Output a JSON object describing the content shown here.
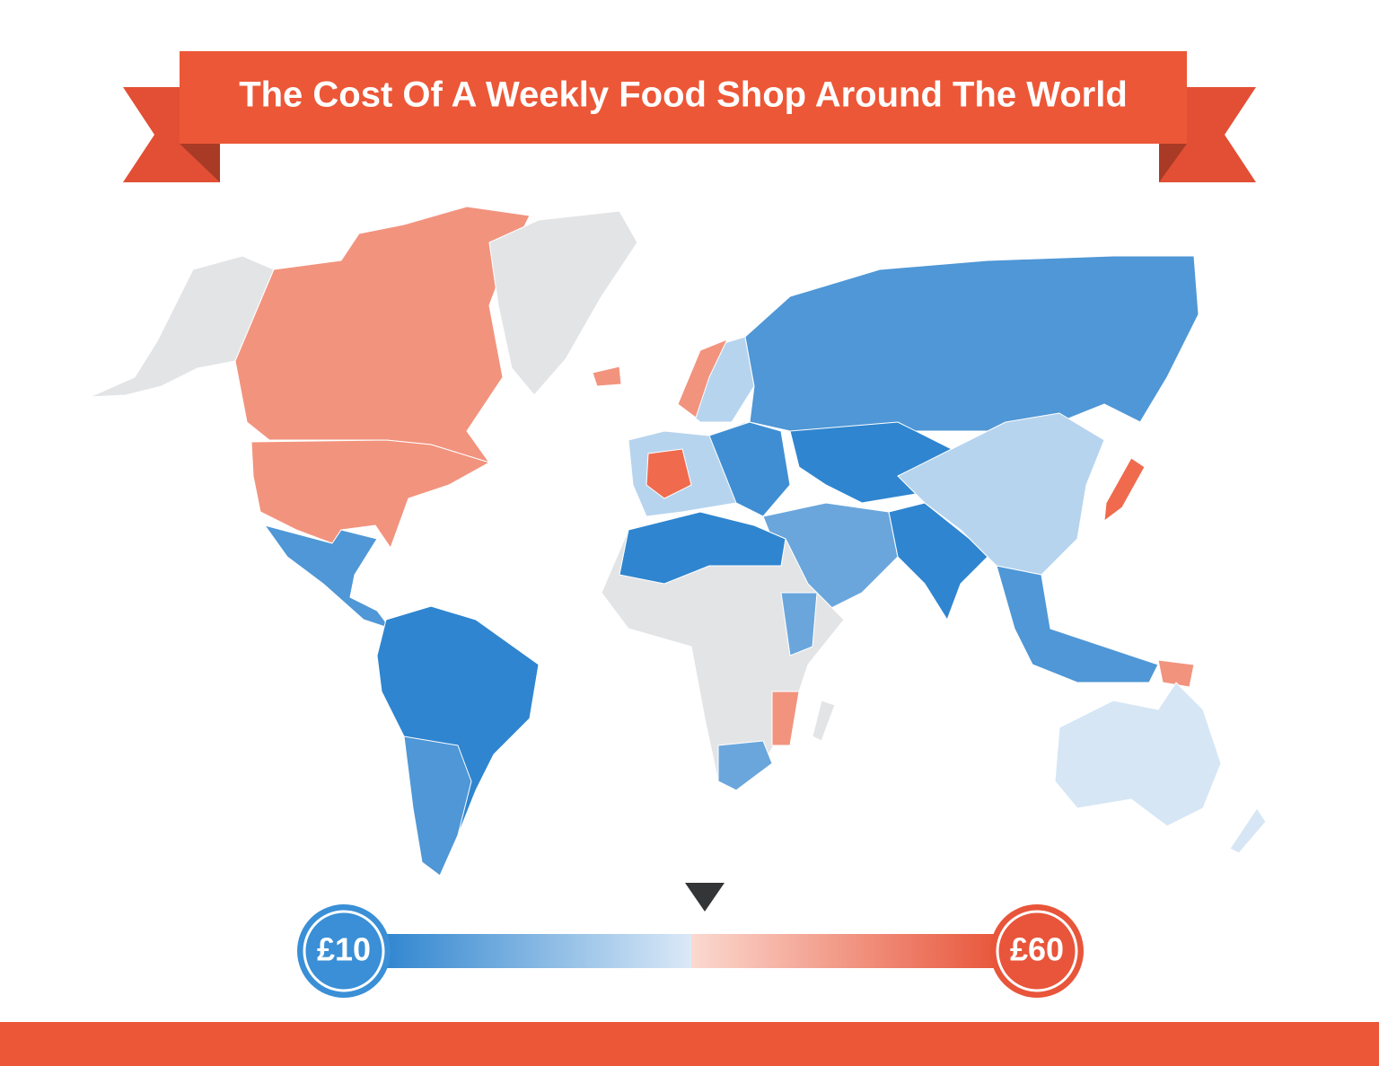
{
  "title": "The Cost Of A Weekly Food Shop Around The World",
  "legend": {
    "min_label": "£10",
    "max_label": "£60"
  }
}
